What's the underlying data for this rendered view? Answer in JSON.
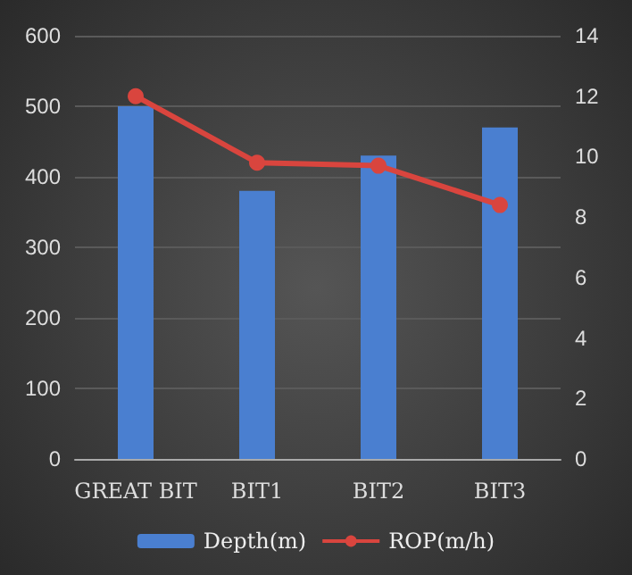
{
  "chart_data": {
    "type": "bar",
    "categories": [
      "GREAT BIT",
      "BIT1",
      "BIT2",
      "BIT3"
    ],
    "series": [
      {
        "name": "Depth(m)",
        "color": "#4a7fd0",
        "values": [
          500,
          380,
          430,
          470
        ]
      },
      {
        "name": "ROP(m/h)",
        "type": "line",
        "axis": "y2",
        "color": "#d9453e",
        "values": [
          12,
          9.8,
          9.7,
          8.4
        ]
      }
    ],
    "ylim": [
      0,
      600
    ],
    "yticks": [
      0,
      100,
      200,
      300,
      400,
      500,
      600
    ],
    "y2lim": [
      0,
      14
    ],
    "y2ticks": [
      0,
      2,
      4,
      6,
      8,
      10,
      12,
      14
    ],
    "grid": "y",
    "legend": "bottom",
    "marker": "circle"
  }
}
